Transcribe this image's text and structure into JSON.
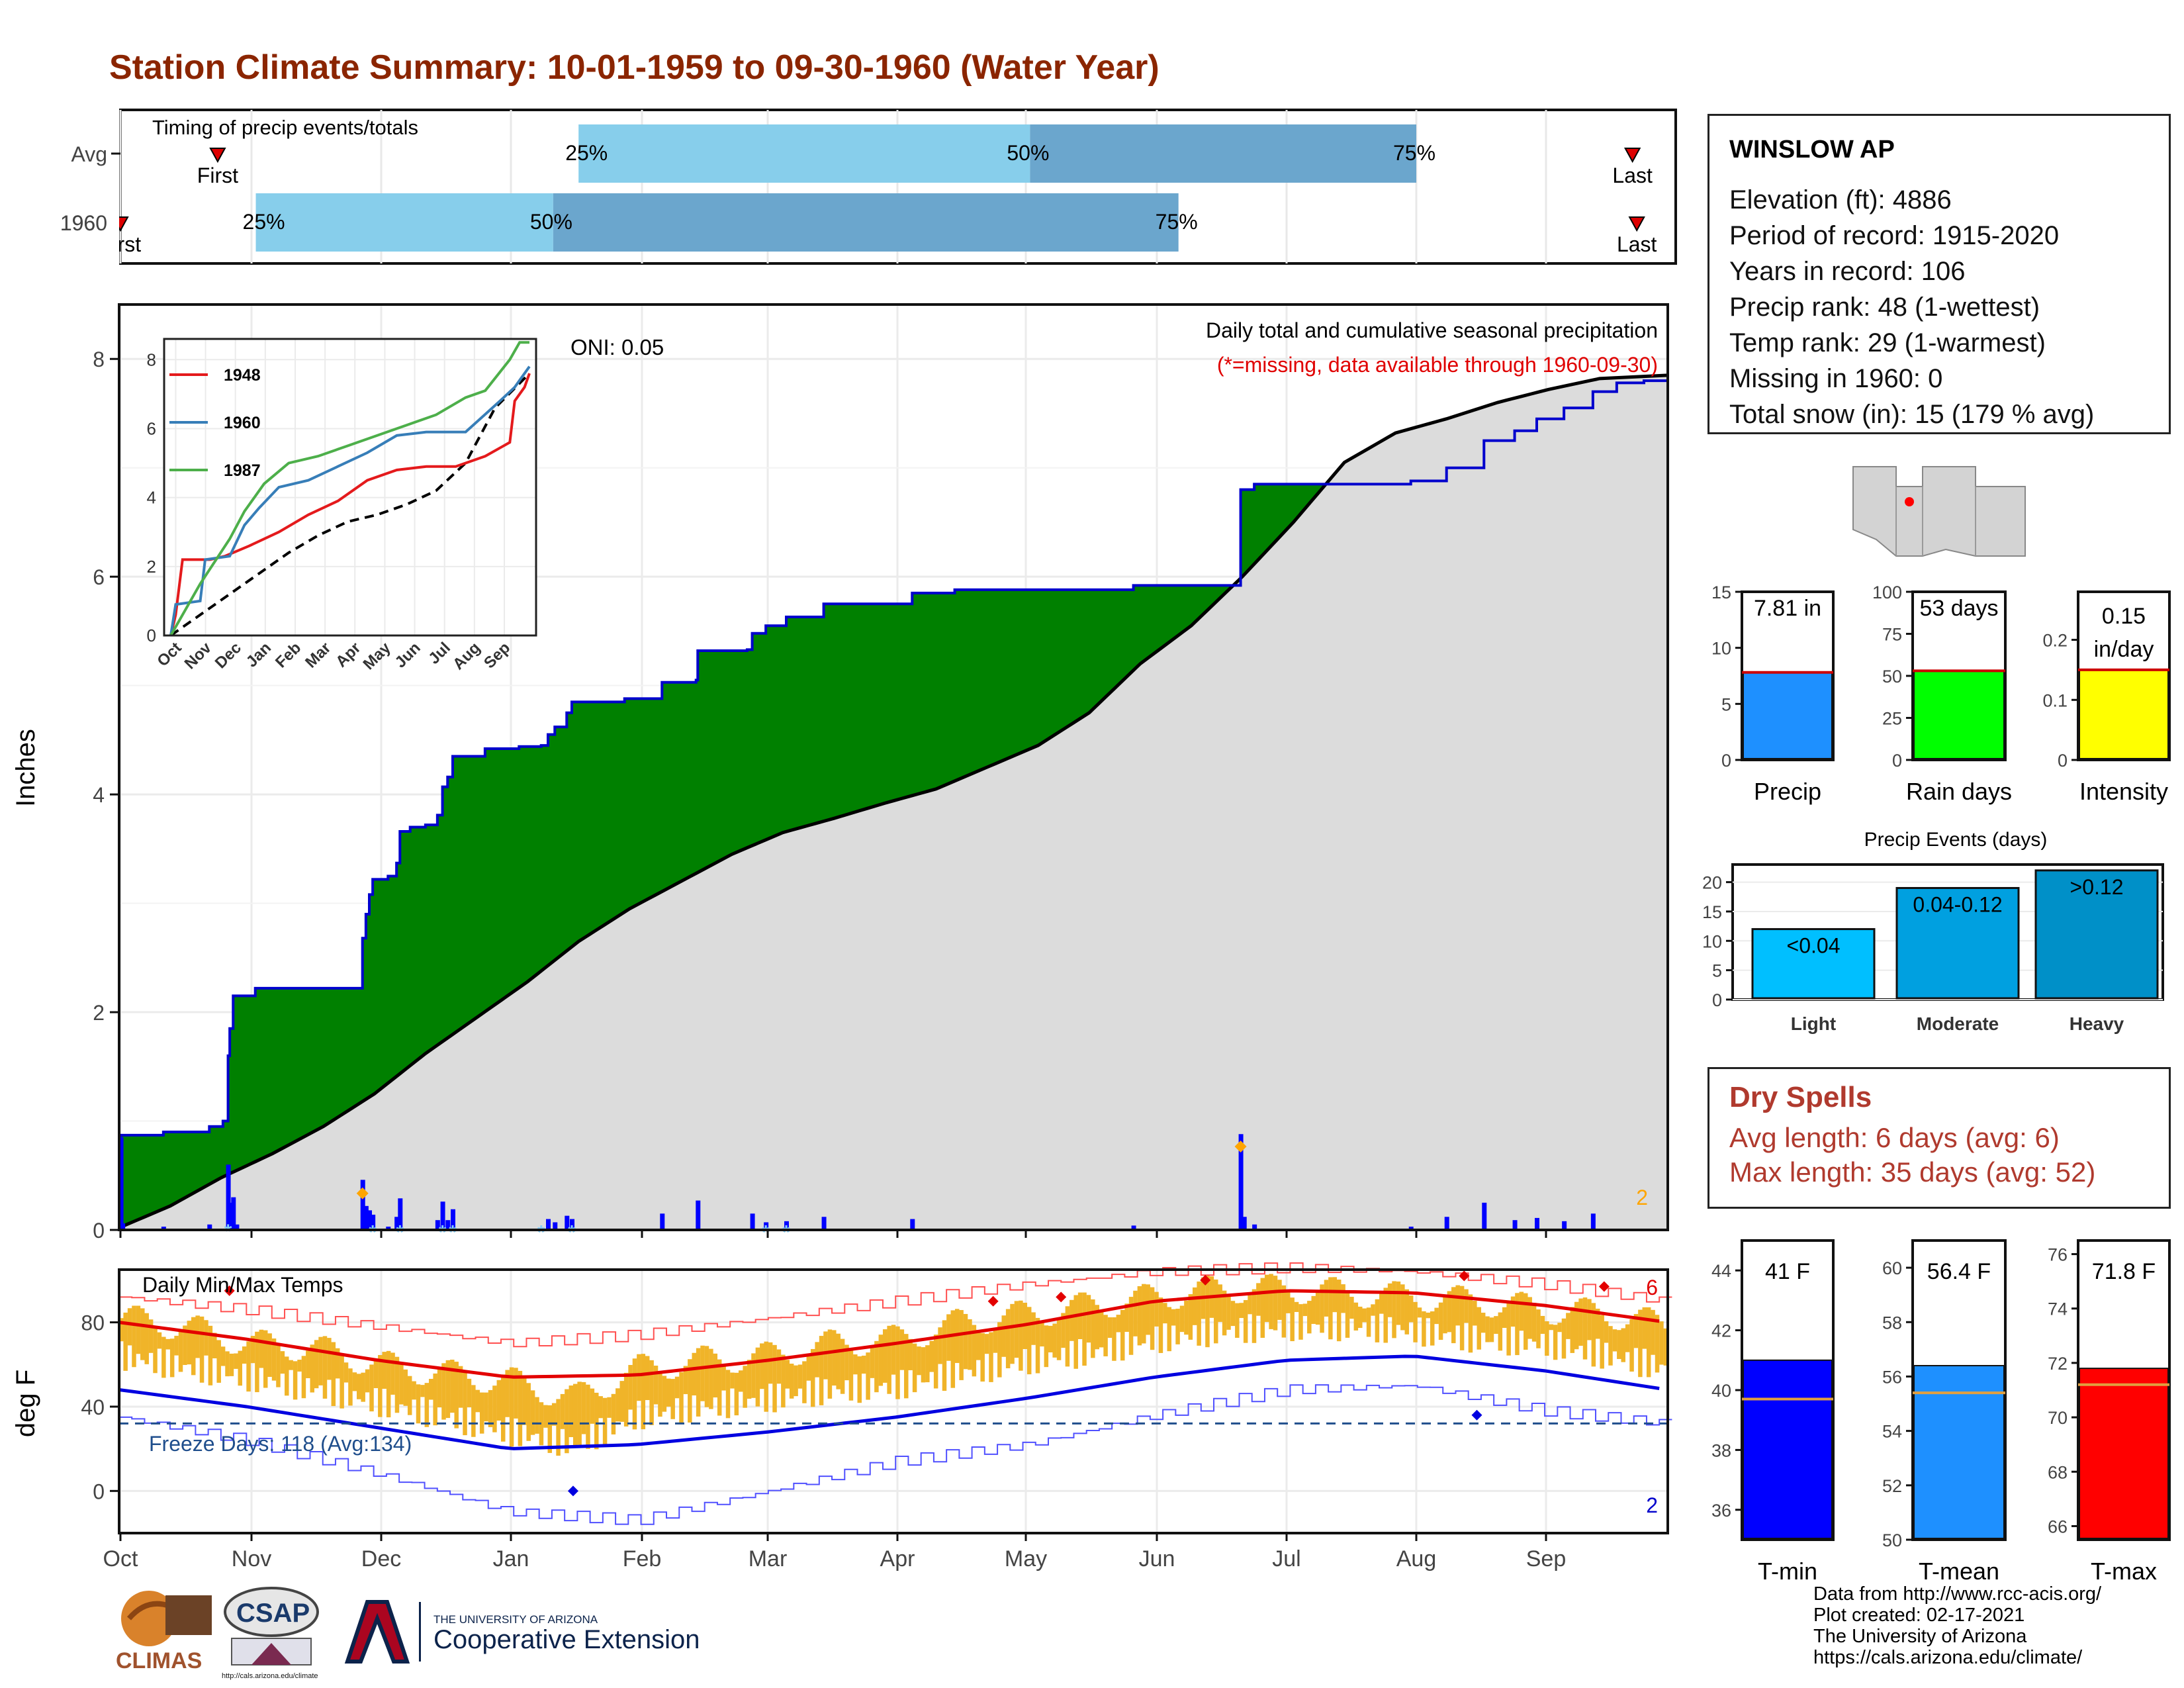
{
  "title": "Station Climate Summary: 10-01-1959 to 09-30-1960 (Water Year)",
  "timing": {
    "heading": "Timing of precip events/totals",
    "rows": [
      {
        "label": "Avg",
        "first_date": "1959-10-24",
        "q25_date": "1960-01-17",
        "q50_date": "1960-05-02",
        "q75_date": "1960-08-01",
        "last_date": "1960-09-21",
        "first_label": "First",
        "last_label": "Last"
      },
      {
        "label": "1960",
        "first_date": "1959-10-01",
        "q25_date": "1959-11-02",
        "q50_date": "1960-01-11",
        "q75_date": "1960-06-06",
        "last_date": "1960-09-22",
        "first_label": "First",
        "last_label": "Last"
      }
    ],
    "pct_labels": [
      "25%",
      "50%",
      "75%"
    ],
    "colors": {
      "light": "#87ceeb",
      "dark": "#6ba6cd",
      "marker": "#dd0000"
    }
  },
  "precip": {
    "ylabel": "Inches",
    "ylim": [
      0,
      8.5
    ],
    "yticks": [
      0,
      2,
      4,
      6,
      8
    ],
    "oni": "ONI: 0.05",
    "note1": "Daily total and cumulative seasonal precipitation",
    "note2": "(*=missing, data available through 1960-09-30)",
    "count_label": "2",
    "colors": {
      "fill": "#008000",
      "line": "#0000cd",
      "normal": "#dcdcdc",
      "bars": "#0000ff",
      "star": "#87cefa",
      "orange": "#ffa500"
    },
    "cumulative_1960": [
      [
        0,
        0.01
      ],
      [
        1,
        0.87
      ],
      [
        26,
        0.9
      ],
      [
        53,
        0.95
      ],
      [
        61,
        1.0
      ],
      [
        64,
        1.6
      ],
      [
        65,
        1.85
      ],
      [
        67,
        2.15
      ],
      [
        80,
        2.22
      ],
      [
        100,
        2.22
      ],
      [
        130,
        2.22
      ],
      [
        141,
        2.22
      ],
      [
        143,
        2.68
      ],
      [
        145,
        2.9
      ],
      [
        147,
        3.08
      ],
      [
        149,
        3.22
      ],
      [
        158,
        3.25
      ],
      [
        163,
        3.37
      ],
      [
        165,
        3.66
      ],
      [
        171,
        3.7
      ],
      [
        180,
        3.72
      ],
      [
        187,
        3.81
      ],
      [
        190,
        4.07
      ],
      [
        193,
        4.16
      ],
      [
        196,
        4.35
      ],
      [
        215,
        4.42
      ],
      [
        235,
        4.44
      ],
      [
        248,
        4.45
      ],
      [
        252,
        4.55
      ],
      [
        256,
        4.62
      ],
      [
        263,
        4.75
      ],
      [
        266,
        4.85
      ],
      [
        297,
        4.88
      ],
      [
        319,
        5.03
      ],
      [
        339,
        5.05
      ],
      [
        340,
        5.32
      ],
      [
        369,
        5.33
      ],
      [
        372,
        5.48
      ],
      [
        380,
        5.55
      ],
      [
        392,
        5.63
      ],
      [
        414,
        5.75
      ],
      [
        466,
        5.85
      ],
      [
        491,
        5.88
      ],
      [
        569,
        5.88
      ],
      [
        596,
        5.92
      ],
      [
        617,
        5.92
      ],
      [
        638,
        5.92
      ],
      [
        659,
        6.8
      ],
      [
        667,
        6.85
      ],
      [
        723,
        6.85
      ],
      [
        759,
        6.88
      ],
      [
        780,
        7.0
      ],
      [
        802,
        7.25
      ],
      [
        820,
        7.34
      ],
      [
        833,
        7.45
      ],
      [
        849,
        7.55
      ],
      [
        866,
        7.7
      ],
      [
        880,
        7.78
      ],
      [
        896,
        7.8
      ],
      [
        910,
        7.81
      ]
    ],
    "cumulative_normal": [
      [
        0,
        0.02
      ],
      [
        30,
        0.22
      ],
      [
        60,
        0.48
      ],
      [
        90,
        0.7
      ],
      [
        120,
        0.95
      ],
      [
        150,
        1.25
      ],
      [
        180,
        1.62
      ],
      [
        210,
        1.95
      ],
      [
        240,
        2.28
      ],
      [
        270,
        2.65
      ],
      [
        300,
        2.95
      ],
      [
        330,
        3.2
      ],
      [
        360,
        3.45
      ],
      [
        390,
        3.65
      ],
      [
        420,
        3.78
      ],
      [
        450,
        3.92
      ],
      [
        480,
        4.05
      ],
      [
        510,
        4.25
      ],
      [
        540,
        4.45
      ],
      [
        570,
        4.75
      ],
      [
        600,
        5.2
      ],
      [
        630,
        5.55
      ],
      [
        660,
        6.0
      ],
      [
        690,
        6.5
      ],
      [
        720,
        7.05
      ],
      [
        750,
        7.32
      ],
      [
        780,
        7.45
      ],
      [
        810,
        7.6
      ],
      [
        840,
        7.72
      ],
      [
        870,
        7.82
      ],
      [
        910,
        7.85
      ]
    ],
    "daily_1960": [
      [
        1,
        0.85
      ],
      [
        2,
        0.06
      ],
      [
        26,
        0.03
      ],
      [
        53,
        0.05
      ],
      [
        64,
        0.6
      ],
      [
        65,
        0.25
      ],
      [
        67,
        0.3
      ],
      [
        69,
        0.05
      ],
      [
        143,
        0.46
      ],
      [
        145,
        0.22
      ],
      [
        147,
        0.18
      ],
      [
        149,
        0.14
      ],
      [
        158,
        0.03
      ],
      [
        163,
        0.12
      ],
      [
        165,
        0.29
      ],
      [
        187,
        0.09
      ],
      [
        190,
        0.26
      ],
      [
        193,
        0.09
      ],
      [
        196,
        0.19
      ],
      [
        248,
        0.02
      ],
      [
        252,
        0.1
      ],
      [
        256,
        0.07
      ],
      [
        263,
        0.13
      ],
      [
        266,
        0.1
      ],
      [
        319,
        0.15
      ],
      [
        340,
        0.27
      ],
      [
        372,
        0.15
      ],
      [
        380,
        0.07
      ],
      [
        392,
        0.08
      ],
      [
        414,
        0.12
      ],
      [
        466,
        0.1
      ],
      [
        596,
        0.04
      ],
      [
        659,
        0.88
      ],
      [
        661,
        0.12
      ],
      [
        667,
        0.05
      ],
      [
        759,
        0.03
      ],
      [
        780,
        0.12
      ],
      [
        802,
        0.25
      ],
      [
        820,
        0.09
      ],
      [
        833,
        0.11
      ],
      [
        849,
        0.08
      ],
      [
        866,
        0.15
      ]
    ],
    "daily_markers": [
      [
        143,
        0.33
      ],
      [
        659,
        0.76
      ]
    ],
    "star_marks": [
      [
        64,
        0.05
      ],
      [
        149,
        0.04
      ],
      [
        165,
        0.04
      ],
      [
        190,
        0.04
      ],
      [
        196,
        0.04
      ],
      [
        248,
        0.04
      ],
      [
        266,
        0.04
      ],
      [
        380,
        0.04
      ],
      [
        392,
        0.04
      ]
    ]
  },
  "inset": {
    "legend": [
      "1948",
      "1960",
      "1987"
    ],
    "colors": [
      "#e41a1c",
      "#377eb8",
      "#4daf4a"
    ],
    "yticks": [
      0,
      2,
      4,
      6,
      8
    ],
    "xticks": [
      "Oct",
      "Nov",
      "Dec",
      "Jan",
      "Feb",
      "Mar",
      "Apr",
      "May",
      "Jun",
      "Jul",
      "Aug",
      "Sep"
    ],
    "series_1948": [
      [
        0,
        0
      ],
      [
        5,
        0.6
      ],
      [
        12,
        2.2
      ],
      [
        40,
        2.2
      ],
      [
        55,
        2.3
      ],
      [
        80,
        2.6
      ],
      [
        110,
        3.0
      ],
      [
        140,
        3.5
      ],
      [
        170,
        3.9
      ],
      [
        200,
        4.5
      ],
      [
        230,
        4.8
      ],
      [
        260,
        4.9
      ],
      [
        290,
        4.9
      ],
      [
        320,
        5.2
      ],
      [
        345,
        5.6
      ],
      [
        350,
        6.8
      ],
      [
        360,
        7.2
      ],
      [
        365,
        7.6
      ]
    ],
    "series_1960": [
      [
        0,
        0
      ],
      [
        5,
        0.9
      ],
      [
        30,
        1.0
      ],
      [
        35,
        2.2
      ],
      [
        60,
        2.3
      ],
      [
        75,
        3.2
      ],
      [
        90,
        3.7
      ],
      [
        110,
        4.3
      ],
      [
        140,
        4.5
      ],
      [
        170,
        4.9
      ],
      [
        200,
        5.3
      ],
      [
        230,
        5.8
      ],
      [
        260,
        5.9
      ],
      [
        300,
        5.9
      ],
      [
        335,
        6.8
      ],
      [
        350,
        7.2
      ],
      [
        365,
        7.8
      ]
    ],
    "series_1987": [
      [
        0,
        0
      ],
      [
        10,
        0.5
      ],
      [
        30,
        1.5
      ],
      [
        60,
        2.8
      ],
      [
        75,
        3.6
      ],
      [
        95,
        4.4
      ],
      [
        120,
        5.0
      ],
      [
        150,
        5.2
      ],
      [
        180,
        5.5
      ],
      [
        210,
        5.8
      ],
      [
        240,
        6.1
      ],
      [
        270,
        6.4
      ],
      [
        300,
        6.9
      ],
      [
        320,
        7.1
      ],
      [
        345,
        8.0
      ],
      [
        355,
        8.5
      ],
      [
        365,
        8.5
      ]
    ],
    "series_normal": [
      [
        0,
        0
      ],
      [
        30,
        0.6
      ],
      [
        60,
        1.2
      ],
      [
        90,
        1.8
      ],
      [
        120,
        2.4
      ],
      [
        150,
        2.9
      ],
      [
        180,
        3.3
      ],
      [
        210,
        3.5
      ],
      [
        240,
        3.8
      ],
      [
        270,
        4.2
      ],
      [
        300,
        5.0
      ],
      [
        330,
        6.6
      ],
      [
        365,
        7.6
      ]
    ]
  },
  "temps": {
    "ylabel": "deg F",
    "heading": "Daily Min/Max Temps",
    "freeze": "Freeze Days: 118 (Avg:134)",
    "count_red": "6",
    "count_blue": "2",
    "yticks": [
      0,
      40,
      80
    ],
    "ylim": [
      -20,
      105
    ],
    "colors": {
      "range": "#f0b429",
      "max": "#e30000",
      "min": "#0000e0",
      "freeze": "#1f4e8c"
    },
    "avg_max": [
      [
        0,
        80
      ],
      [
        30,
        72
      ],
      [
        61,
        62
      ],
      [
        92,
        54
      ],
      [
        122,
        55
      ],
      [
        153,
        62
      ],
      [
        183,
        70
      ],
      [
        214,
        79
      ],
      [
        244,
        90
      ],
      [
        275,
        95
      ],
      [
        305,
        94
      ],
      [
        336,
        88
      ],
      [
        365,
        80
      ]
    ],
    "avg_min": [
      [
        0,
        48
      ],
      [
        30,
        40
      ],
      [
        61,
        30
      ],
      [
        92,
        20
      ],
      [
        122,
        22
      ],
      [
        153,
        28
      ],
      [
        183,
        35
      ],
      [
        214,
        44
      ],
      [
        244,
        54
      ],
      [
        275,
        62
      ],
      [
        305,
        64
      ],
      [
        336,
        57
      ],
      [
        365,
        48
      ]
    ],
    "record_max": [
      [
        0,
        92
      ],
      [
        30,
        86
      ],
      [
        61,
        78
      ],
      [
        92,
        70
      ],
      [
        122,
        74
      ],
      [
        153,
        82
      ],
      [
        183,
        90
      ],
      [
        214,
        98
      ],
      [
        244,
        104
      ],
      [
        275,
        106
      ],
      [
        305,
        104
      ],
      [
        336,
        98
      ],
      [
        365,
        90
      ]
    ],
    "record_min": [
      [
        0,
        35
      ],
      [
        30,
        24
      ],
      [
        61,
        8
      ],
      [
        92,
        -10
      ],
      [
        122,
        -14
      ],
      [
        153,
        0
      ],
      [
        183,
        14
      ],
      [
        214,
        22
      ],
      [
        244,
        36
      ],
      [
        275,
        48
      ],
      [
        305,
        50
      ],
      [
        336,
        38
      ],
      [
        365,
        32
      ]
    ],
    "freeze_value": 32,
    "daily_max": [
      [
        0,
        82
      ],
      [
        15,
        78
      ],
      [
        30,
        70
      ],
      [
        45,
        68
      ],
      [
        61,
        60
      ],
      [
        75,
        56
      ],
      [
        92,
        52
      ],
      [
        107,
        44
      ],
      [
        122,
        58
      ],
      [
        137,
        62
      ],
      [
        153,
        64
      ],
      [
        168,
        70
      ],
      [
        183,
        72
      ],
      [
        198,
        80
      ],
      [
        214,
        84
      ],
      [
        229,
        88
      ],
      [
        244,
        92
      ],
      [
        259,
        96
      ],
      [
        275,
        96
      ],
      [
        290,
        94
      ],
      [
        305,
        92
      ],
      [
        320,
        90
      ],
      [
        336,
        86
      ],
      [
        351,
        84
      ],
      [
        365,
        78
      ]
    ],
    "daily_min": [
      [
        0,
        50
      ],
      [
        15,
        45
      ],
      [
        30,
        40
      ],
      [
        45,
        35
      ],
      [
        61,
        28
      ],
      [
        75,
        22
      ],
      [
        92,
        14
      ],
      [
        107,
        8
      ],
      [
        122,
        22
      ],
      [
        137,
        26
      ],
      [
        153,
        30
      ],
      [
        168,
        34
      ],
      [
        183,
        36
      ],
      [
        198,
        42
      ],
      [
        214,
        48
      ],
      [
        229,
        52
      ],
      [
        244,
        58
      ],
      [
        259,
        62
      ],
      [
        275,
        64
      ],
      [
        290,
        64
      ],
      [
        305,
        62
      ],
      [
        320,
        58
      ],
      [
        336,
        56
      ],
      [
        351,
        50
      ],
      [
        365,
        44
      ]
    ]
  },
  "xaxis_months": [
    "Oct",
    "Nov",
    "Dec",
    "Jan",
    "Feb",
    "Mar",
    "Apr",
    "May",
    "Jun",
    "Jul",
    "Aug",
    "Sep"
  ],
  "station": {
    "name": "WINSLOW AP",
    "lines": [
      "Elevation (ft): 4886",
      "Period of record: 1915-2020",
      "Years in record: 106",
      "Precip rank: 48 (1-wettest)",
      "Temp rank: 29 (1-warmest)",
      "Missing in 1960: 0",
      "Total snow (in): 15 (179 % avg)"
    ]
  },
  "summary_bars": [
    {
      "label": "Precip",
      "value_label": "7.81 in",
      "value": 7.81,
      "avg": 7.81,
      "ylim": [
        0,
        15
      ],
      "yticks": [
        0,
        5,
        10,
        15
      ],
      "color": "#1e90ff"
    },
    {
      "label": "Rain days",
      "value_label": "53 days",
      "value": 53,
      "avg": 53,
      "ylim": [
        0,
        100
      ],
      "yticks": [
        0,
        25,
        50,
        75,
        100
      ],
      "color": "#00ff00"
    },
    {
      "label": "Intensity",
      "value_label": "0.15 in/day",
      "value": 0.15,
      "avg": 0.15,
      "ylim": [
        0,
        0.28
      ],
      "yticks": [
        0.0,
        0.1,
        0.2
      ],
      "color": "#ffff00"
    }
  ],
  "precip_events": {
    "title": "Precip Events (days)",
    "categories": [
      "Light",
      "Moderate",
      "Heavy"
    ],
    "bar_labels": [
      "<0.04",
      "0.04-0.12",
      ">0.12"
    ],
    "values": [
      12,
      19,
      22
    ],
    "ylim": [
      0,
      23
    ],
    "yticks": [
      0,
      5,
      10,
      15,
      20
    ],
    "colors": [
      "#00bfff",
      "#00a0e0",
      "#0090c8"
    ]
  },
  "dry_spells": {
    "heading": "Dry Spells",
    "avg_line": "Avg length: 6 days (avg: 6)",
    "max_line": "Max length: 35 days (avg: 52)"
  },
  "temp_bars": [
    {
      "label": "T-min",
      "value_label": "41 F",
      "value": 41,
      "avg": 39.7,
      "ylim": [
        35,
        45
      ],
      "yticks": [
        36,
        38,
        40,
        42,
        44
      ],
      "color": "#0000ff"
    },
    {
      "label": "T-mean",
      "value_label": "56.4 F",
      "value": 56.4,
      "avg": 55.4,
      "ylim": [
        50,
        61
      ],
      "yticks": [
        50,
        52,
        54,
        56,
        58,
        60
      ],
      "color": "#1e90ff"
    },
    {
      "label": "T-max",
      "value_label": "71.8 F",
      "value": 71.8,
      "avg": 71.2,
      "ylim": [
        65.5,
        76.5
      ],
      "yticks": [
        66,
        68,
        70,
        72,
        74,
        76
      ],
      "color": "#ff0000"
    }
  ],
  "credits": [
    "Data from http://www.rcc-acis.org/",
    "Plot created: 02-17-2021",
    "The University of Arizona",
    "https://cals.arizona.edu/climate/"
  ],
  "logos": {
    "climas": "CLIMAS",
    "csap": "CSAP",
    "csap_url": "http://cals.arizona.edu/climate",
    "ua_small": "THE UNIVERSITY OF ARIZONA",
    "ua_big": "Cooperative Extension"
  }
}
